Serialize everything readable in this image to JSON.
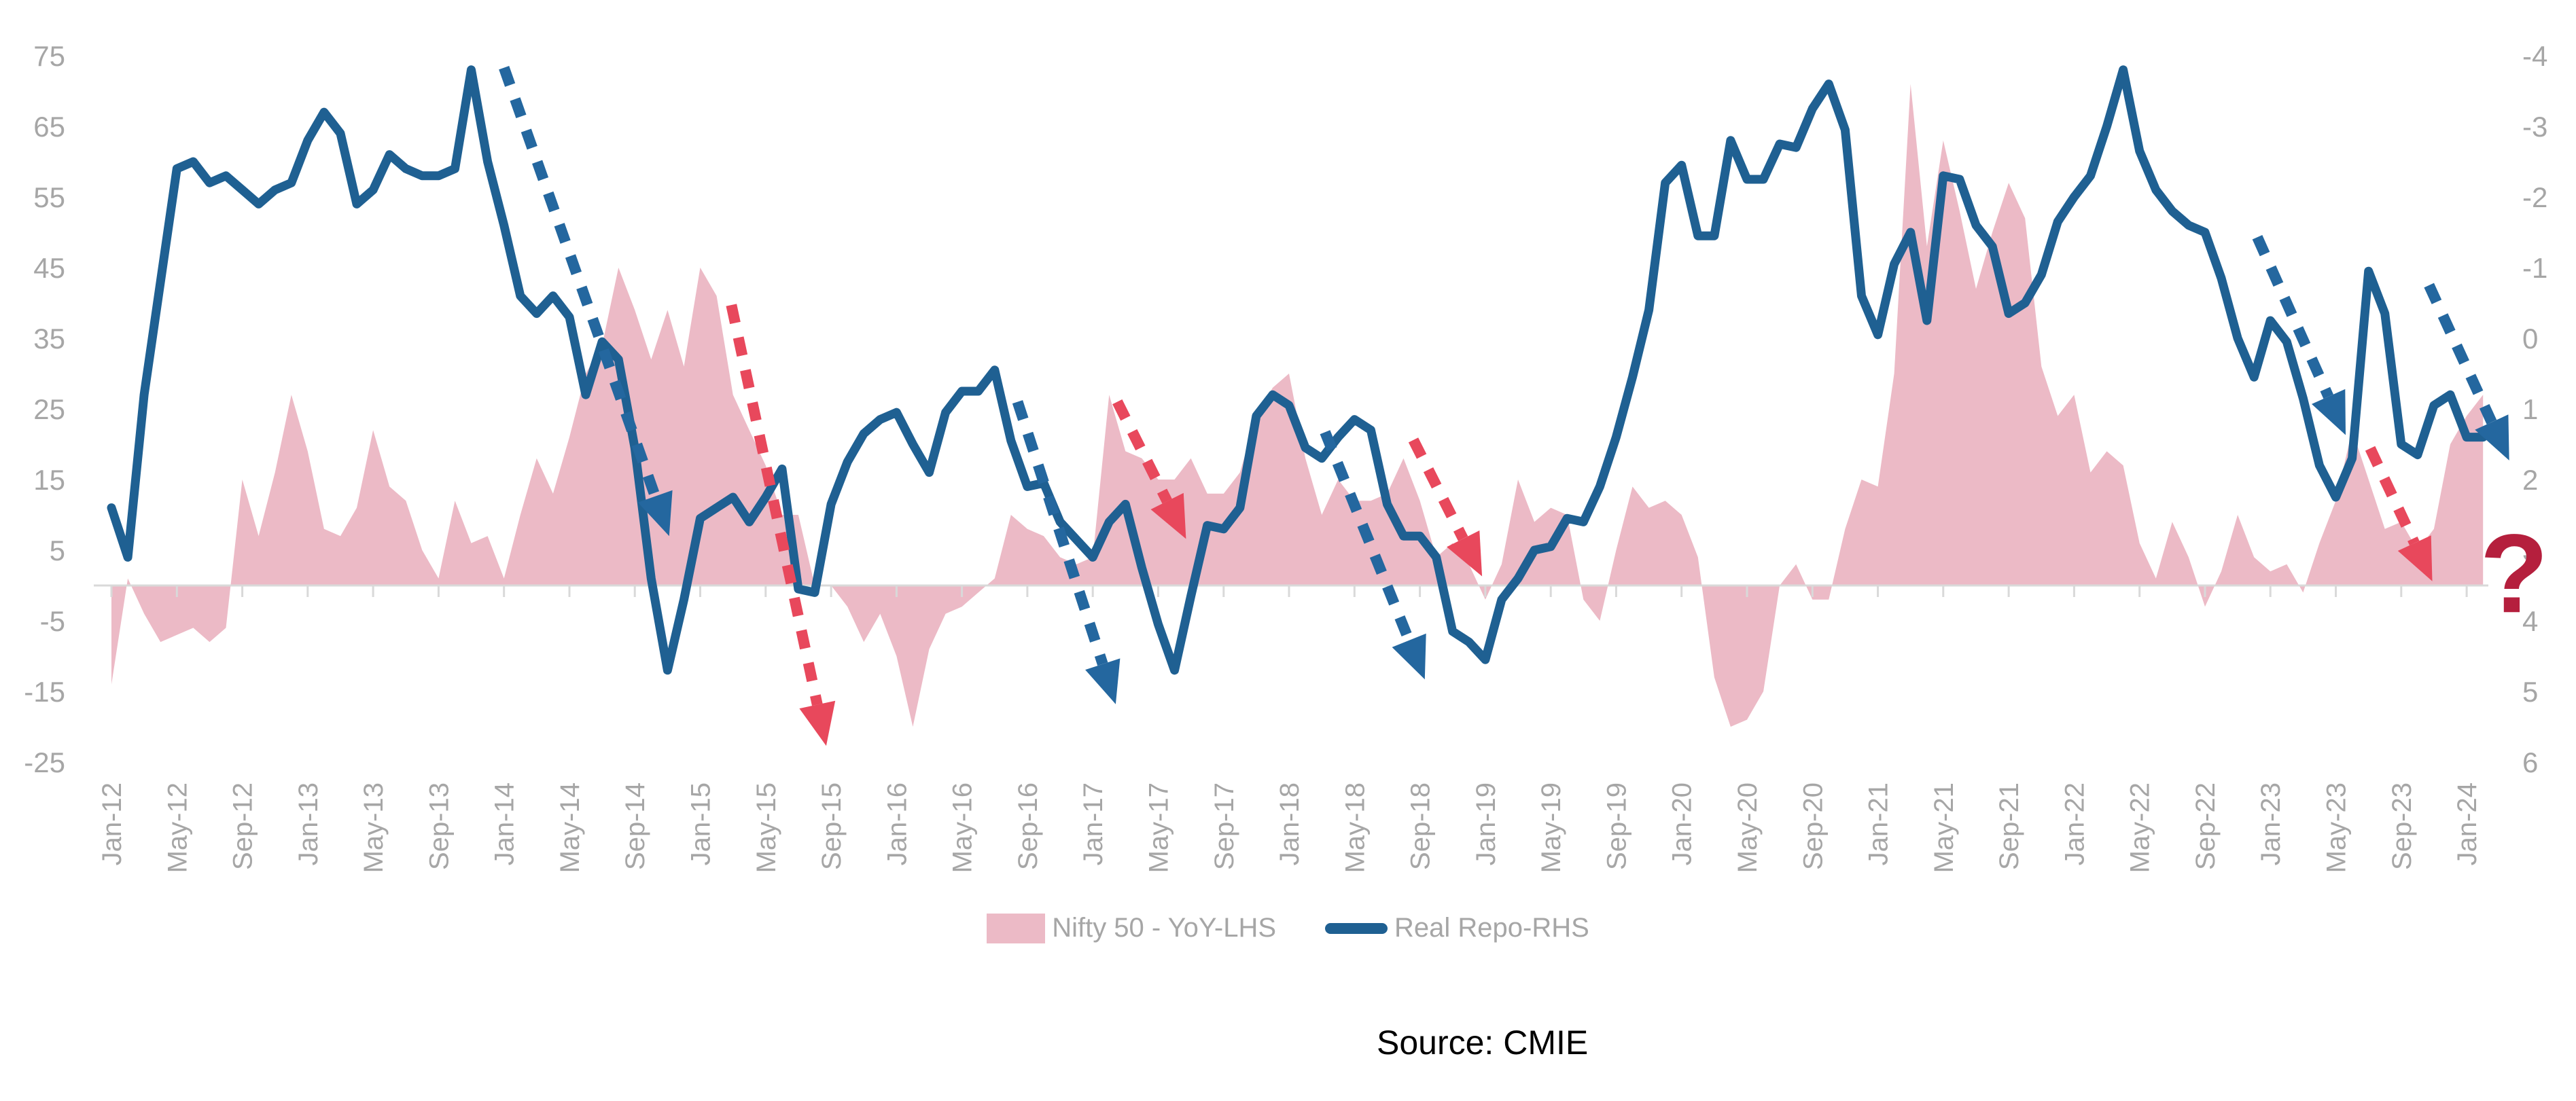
{
  "chart_data": {
    "type": "combo",
    "title": "",
    "x_start_month": "Jan-12",
    "x_end_month": "Feb-24",
    "x_tick_labels": [
      "Jan-12",
      "May-12",
      "Sep-12",
      "Jan-13",
      "May-13",
      "Sep-13",
      "Jan-14",
      "May-14",
      "Sep-14",
      "Jan-15",
      "May-15",
      "Sep-15",
      "Jan-16",
      "May-16",
      "Sep-16",
      "Jan-17",
      "May-17",
      "Sep-17",
      "Jan-18",
      "May-18",
      "Sep-18",
      "Jan-19",
      "May-19",
      "Sep-19",
      "Jan-20",
      "May-20",
      "Sep-20",
      "Jan-21",
      "May-21",
      "Sep-21",
      "Jan-22",
      "May-22",
      "Sep-22",
      "Jan-23",
      "May-23",
      "Sep-23",
      "Jan-24"
    ],
    "left_axis": {
      "min": -25,
      "max": 75,
      "ticks": [
        75,
        65,
        55,
        45,
        35,
        25,
        15,
        5,
        -5,
        -15,
        -25
      ]
    },
    "right_axis": {
      "min": -4,
      "max": 6,
      "ticks": [
        -4,
        -3,
        -2,
        -1,
        0,
        1,
        2,
        3,
        4,
        5,
        6
      ],
      "inverted": true
    },
    "grid": "off",
    "legend_position": "bottom",
    "series": [
      {
        "name": "Nifty 50 - YoY-LHS",
        "kind": "area",
        "axis": "left",
        "values": [
          -14,
          1,
          -4,
          -8,
          -7,
          -6,
          -8,
          -6,
          15,
          7,
          16,
          27,
          19,
          8,
          7,
          11,
          22,
          14,
          12,
          5,
          1,
          12,
          6,
          7,
          1,
          10,
          18,
          13,
          21,
          30,
          34,
          45,
          39,
          32,
          39,
          31,
          45,
          41,
          27,
          22,
          17,
          10,
          10,
          0,
          0,
          -3,
          -8,
          -4,
          -10,
          -20,
          -9,
          -4,
          -3,
          -1,
          1,
          10,
          8,
          7,
          4,
          3,
          4,
          27,
          19,
          18,
          15,
          15,
          18,
          13,
          13,
          16,
          24,
          28,
          30,
          18,
          10,
          15,
          12,
          12,
          13,
          18,
          12,
          4,
          6,
          3,
          -2,
          3,
          15,
          9,
          11,
          10,
          -2,
          -5,
          5,
          14,
          11,
          12,
          10,
          4,
          -13,
          -20,
          -19,
          -15,
          0,
          3,
          -2,
          -2,
          8,
          15,
          14,
          30,
          71,
          48,
          63,
          53,
          42,
          50,
          57,
          52,
          31,
          24,
          27,
          16,
          19,
          17,
          6,
          1,
          9,
          4,
          -3,
          2,
          10,
          4,
          2,
          3,
          -1,
          6,
          12,
          22,
          15,
          8,
          9,
          5,
          8,
          20,
          24,
          27
        ]
      },
      {
        "name": "Real Repo-RHS",
        "kind": "line",
        "axis": "right",
        "values": [
          2.4,
          3.1,
          0.8,
          -0.8,
          -2.4,
          -2.5,
          -2.2,
          -2.3,
          -2.1,
          -1.9,
          -2.1,
          -2.2,
          -2.8,
          -3.2,
          -2.9,
          -1.9,
          -2.1,
          -2.6,
          -2.4,
          -2.3,
          -2.3,
          -2.4,
          -3.8,
          -2.5,
          -1.6,
          -0.6,
          -0.35,
          -0.6,
          -0.3,
          0.8,
          0.05,
          0.3,
          1.55,
          3.4,
          4.7,
          3.7,
          2.55,
          2.4,
          2.25,
          2.6,
          2.25,
          1.85,
          3.55,
          3.6,
          2.35,
          1.75,
          1.35,
          1.15,
          1.05,
          1.5,
          1.9,
          1.05,
          0.75,
          0.75,
          0.45,
          1.45,
          2.1,
          2.05,
          2.6,
          2.85,
          3.1,
          2.6,
          2.35,
          3.25,
          4.05,
          4.7,
          3.65,
          2.65,
          2.7,
          2.4,
          1.1,
          0.8,
          0.95,
          1.55,
          1.7,
          1.4,
          1.15,
          1.3,
          2.35,
          2.8,
          2.8,
          3.1,
          4.15,
          4.3,
          4.55,
          3.7,
          3.4,
          3.0,
          2.95,
          2.55,
          2.6,
          2.1,
          1.4,
          0.55,
          -0.4,
          -2.2,
          -2.45,
          -1.45,
          -1.45,
          -2.8,
          -2.25,
          -2.25,
          -2.75,
          -2.7,
          -3.25,
          -3.6,
          -2.95,
          -0.6,
          -0.05,
          -1.05,
          -1.5,
          -0.25,
          -2.3,
          -2.25,
          -1.6,
          -1.3,
          -0.35,
          -0.5,
          -0.9,
          -1.65,
          -2.0,
          -2.3,
          -3.0,
          -3.8,
          -2.65,
          -2.1,
          -1.8,
          -1.6,
          -1.5,
          -0.85,
          0.0,
          0.55,
          -0.25,
          0.05,
          0.85,
          1.8,
          2.25,
          1.7,
          -0.95,
          -0.35,
          1.5,
          1.65,
          0.95,
          0.8,
          1.4,
          1.4
        ]
      }
    ],
    "annotations": {
      "arrows": [
        {
          "color": "blue",
          "from": [
            24.0,
            73.3
          ],
          "to": [
            34.1,
            7.0
          ]
        },
        {
          "color": "red",
          "from": [
            37.9,
            39.7
          ],
          "to": [
            43.7,
            -22.7
          ]
        },
        {
          "color": "blue",
          "from": [
            55.4,
            26.0
          ],
          "to": [
            61.4,
            -16.8
          ]
        },
        {
          "color": "red",
          "from": [
            61.5,
            26.0
          ],
          "to": [
            65.7,
            6.6
          ]
        },
        {
          "color": "blue",
          "from": [
            74.2,
            21.7
          ],
          "to": [
            80.3,
            -13.3
          ]
        },
        {
          "color": "red",
          "from": [
            79.6,
            20.6
          ],
          "to": [
            83.8,
            1.3
          ]
        },
        {
          "color": "blue",
          "from": [
            131.2,
            49.3
          ],
          "to": [
            136.6,
            21.3
          ]
        },
        {
          "color": "red",
          "from": [
            138.1,
            19.4
          ],
          "to": [
            141.9,
            0.6
          ]
        },
        {
          "color": "blue",
          "from": [
            141.7,
            42.5
          ],
          "to": [
            146.6,
            17.7
          ]
        }
      ],
      "question_mark": {
        "text": "?",
        "pos": [
          146.9,
          1.8
        ],
        "color": "#b51f3d"
      }
    },
    "colors": {
      "area": "#ecbac6",
      "line": "#1f6092",
      "blue_arrow": "#24679f",
      "red_arrow": "#e8485c",
      "axis_text": "#a6a6a6",
      "grid": "#d9d9d9"
    }
  },
  "legend": {
    "items": [
      {
        "label": "Nifty 50 - YoY-LHS",
        "marker": "area-swatch"
      },
      {
        "label": "Real Repo-RHS",
        "marker": "line-swatch"
      }
    ]
  },
  "source": {
    "text": "Source: CMIE"
  }
}
